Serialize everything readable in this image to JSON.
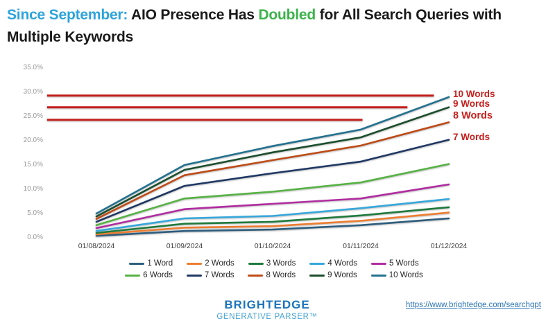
{
  "title": {
    "segments": [
      {
        "text": "Since September:",
        "color": "#2CA4DC"
      },
      {
        "text": " AIO Presence Has ",
        "color": "#1a1a1a"
      },
      {
        "text": "Doubled",
        "color": "#3CB34A"
      },
      {
        "text": " for All Search Queries with",
        "color": "#1a1a1a"
      },
      {
        "br": true
      },
      {
        "text": "Multiple Keywords",
        "color": "#1a1a1a"
      }
    ]
  },
  "chart_data": {
    "type": "line",
    "title": "Since September: AIO Presence Has Doubled for All Search Queries with Multiple Keywords",
    "x_labels": [
      "01/08/2024",
      "01/09/2024",
      "01/10/2024",
      "01/11/2024",
      "01/12/2024"
    ],
    "y_ticks": [
      "0.0%",
      "5.0%",
      "10.0%",
      "15.0%",
      "20.0%",
      "25.0%",
      "30.0%",
      "35.0%"
    ],
    "ylim": [
      0,
      35
    ],
    "grid": false,
    "legend_position": "bottom",
    "series": [
      {
        "name": "1 Word",
        "color": "#2D5D7D",
        "values": [
          0.4,
          1.4,
          1.7,
          2.6,
          4.0
        ]
      },
      {
        "name": "2 Words",
        "color": "#ED7D31",
        "values": [
          0.7,
          2.1,
          2.4,
          3.5,
          5.2
        ]
      },
      {
        "name": "3 Words",
        "color": "#1F7A3D",
        "values": [
          1.0,
          2.9,
          3.3,
          4.6,
          6.3
        ]
      },
      {
        "name": "4 Words",
        "color": "#35A7DB",
        "values": [
          1.4,
          4.0,
          4.5,
          6.1,
          8.0
        ]
      },
      {
        "name": "5 Words",
        "color": "#B02CA0",
        "values": [
          2.0,
          5.9,
          7.0,
          8.1,
          11.0
        ]
      },
      {
        "name": "6 Words",
        "color": "#56B244",
        "values": [
          2.6,
          8.1,
          9.5,
          11.4,
          15.2
        ]
      },
      {
        "name": "7 Words",
        "color": "#1F3864",
        "values": [
          3.3,
          10.7,
          13.3,
          15.7,
          20.2
        ]
      },
      {
        "name": "8 Words",
        "color": "#BE4B17",
        "values": [
          3.9,
          12.9,
          16.0,
          19.0,
          23.8
        ]
      },
      {
        "name": "9 Words",
        "color": "#1C4E2D",
        "values": [
          4.4,
          14.0,
          17.6,
          20.7,
          26.9
        ]
      },
      {
        "name": "10 Words",
        "color": "#23718F",
        "values": [
          5.0,
          15.0,
          18.9,
          22.3,
          29.0
        ]
      }
    ],
    "annotations": {
      "color": "#C5201D",
      "lines": [
        {
          "value": 29.3,
          "from_index": -0.56,
          "to_index": 3.83
        },
        {
          "value": 26.9,
          "from_index": -0.56,
          "to_index": 3.53
        },
        {
          "value": 24.3,
          "from_index": -0.56,
          "to_index": 3.02
        }
      ],
      "end_labels": [
        {
          "text": "10 Words",
          "bold": false
        },
        {
          "text": "9 Words",
          "bold": false
        },
        {
          "text": "8 Words",
          "bold": true
        },
        {
          "text": "7 Words",
          "bold": false
        }
      ]
    }
  },
  "footer": {
    "brand_line1": "BRIGHTEDGE",
    "brand_line2": "GENERATIVE PARSER™",
    "link": "https://www.brightedge.com/searchgpt"
  }
}
